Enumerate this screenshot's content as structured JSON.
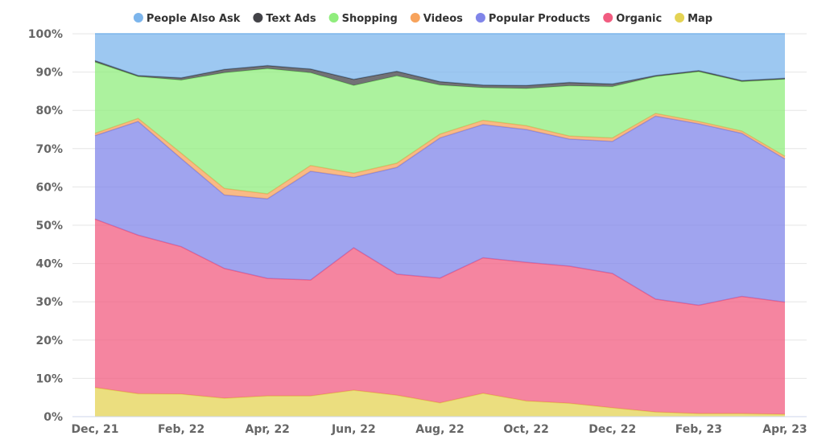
{
  "chart_data": {
    "type": "area",
    "stacked": true,
    "normalized_percent": true,
    "x": [
      "Dec, 21",
      "Jan, 22",
      "Feb, 22",
      "Mar, 22",
      "Apr, 22",
      "May, 22",
      "Jun, 22",
      "Jul, 22",
      "Aug, 22",
      "Sep, 22",
      "Oct, 22",
      "Nov, 22",
      "Dec, 22",
      "Jan, 23",
      "Feb, 23",
      "Mar, 23",
      "Apr, 23"
    ],
    "x_tick_labels": [
      "Dec, 21",
      "Feb, 22",
      "Apr, 22",
      "Jun, 22",
      "Aug, 22",
      "Oct, 22",
      "Dec, 22",
      "Feb, 23",
      "Apr, 23"
    ],
    "y_tick_labels": [
      "0%",
      "10%",
      "20%",
      "30%",
      "40%",
      "50%",
      "60%",
      "70%",
      "80%",
      "90%",
      "100%"
    ],
    "ylim": [
      0,
      100
    ],
    "grid": true,
    "legend_position": "top",
    "series": [
      {
        "name": "Map",
        "color": "#e4d354",
        "values": [
          7.6,
          6.0,
          5.9,
          4.8,
          5.4,
          5.4,
          6.9,
          5.6,
          3.6,
          6.1,
          4.1,
          3.5,
          2.3,
          1.2,
          0.8,
          0.8,
          0.6
        ]
      },
      {
        "name": "Organic",
        "color": "#f15c80",
        "values": [
          44.0,
          41.4,
          38.5,
          33.9,
          30.7,
          30.3,
          37.2,
          31.6,
          32.6,
          35.4,
          36.2,
          35.8,
          35.1,
          29.5,
          28.3,
          30.6,
          29.3
        ]
      },
      {
        "name": "Popular Products",
        "color": "#8085e9",
        "values": [
          21.8,
          29.7,
          23.0,
          19.2,
          20.8,
          28.4,
          18.4,
          27.9,
          36.6,
          34.8,
          34.7,
          33.2,
          34.5,
          47.8,
          47.4,
          42.6,
          37.4
        ]
      },
      {
        "name": "Videos",
        "color": "#f7a35c",
        "values": [
          0.6,
          0.8,
          1.4,
          1.7,
          1.3,
          1.5,
          1.1,
          1.1,
          1.0,
          1.1,
          1.0,
          0.8,
          0.9,
          0.7,
          0.6,
          0.6,
          0.7
        ]
      },
      {
        "name": "Shopping",
        "color": "#90ed7d",
        "values": [
          18.6,
          10.9,
          19.1,
          30.2,
          32.7,
          24.2,
          22.9,
          22.8,
          12.8,
          8.5,
          9.7,
          13.1,
          13.4,
          9.6,
          13.0,
          12.9,
          20.1
        ]
      },
      {
        "name": "Text Ads",
        "color": "#434348",
        "values": [
          0.4,
          0.3,
          0.6,
          0.9,
          0.8,
          1.0,
          1.6,
          1.2,
          0.9,
          0.7,
          0.8,
          0.9,
          0.7,
          0.3,
          0.3,
          0.3,
          0.3
        ]
      },
      {
        "name": "People Also Ask",
        "color": "#7cb5ec",
        "values": [
          7.0,
          10.9,
          11.5,
          9.3,
          8.3,
          9.2,
          11.9,
          9.8,
          12.5,
          13.4,
          13.5,
          12.7,
          13.1,
          10.9,
          9.6,
          12.2,
          11.6
        ]
      }
    ],
    "legend_order": [
      "People Also Ask",
      "Text Ads",
      "Shopping",
      "Videos",
      "Popular Products",
      "Organic",
      "Map"
    ]
  }
}
